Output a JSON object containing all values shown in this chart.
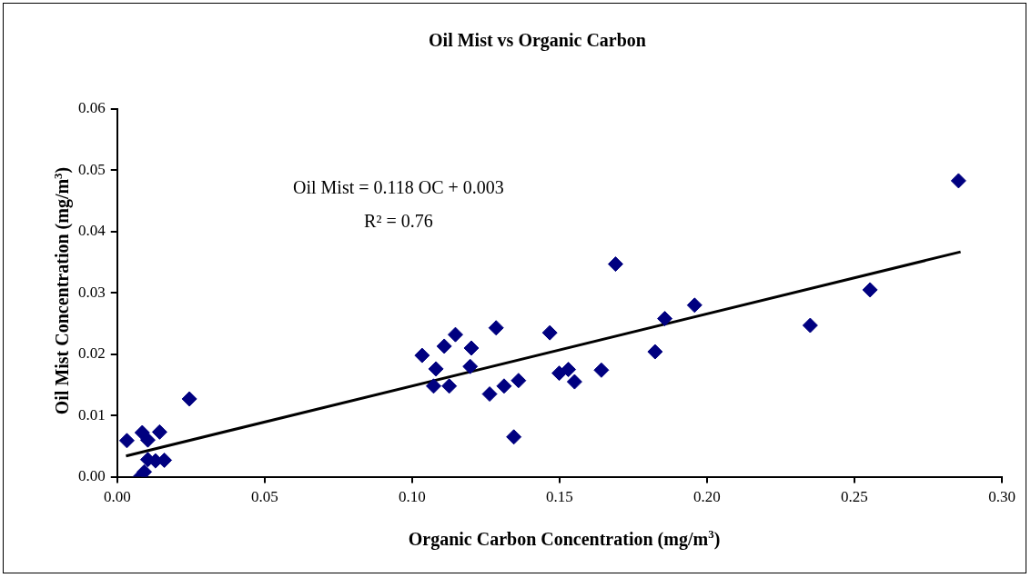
{
  "chart_data": {
    "type": "scatter",
    "title": "Oil Mist vs Organic Carbon",
    "xlabel": "Organic Carbon Concentration (mg/m$^{3}$)",
    "ylabel": "Oil Mist Concentration (mg/m$^{3}$)",
    "annotations": [
      "Oil Mist = 0.118 OC + 0.003",
      "R² = 0.76"
    ],
    "xlim": [
      0,
      0.3
    ],
    "ylim": [
      0,
      0.06
    ],
    "xticks": [
      {
        "value": 0,
        "label": "0.00"
      },
      {
        "value": 0.05,
        "label": "0.05"
      },
      {
        "value": 0.1,
        "label": "0.10"
      },
      {
        "value": 0.15,
        "label": "0.15"
      },
      {
        "value": 0.2,
        "label": "0.20"
      },
      {
        "value": 0.25,
        "label": "0.25"
      },
      {
        "value": 0.3,
        "label": "0.30"
      }
    ],
    "yticks": [
      {
        "value": 0,
        "label": "0.00"
      },
      {
        "value": 0.01,
        "label": "0.01"
      },
      {
        "value": 0.02,
        "label": "0.02"
      },
      {
        "value": 0.03,
        "label": "0.03"
      },
      {
        "value": 0.04,
        "label": "0.04"
      },
      {
        "value": 0.05,
        "label": "0.05"
      },
      {
        "value": 0.06,
        "label": "0.06"
      }
    ],
    "grid": false,
    "legend": false,
    "marker": "diamond",
    "series": [
      {
        "color": "#000080",
        "x": [
          0.0033,
          0.0245,
          0.0085,
          0.0104,
          0.0144,
          0.0104,
          0.013,
          0.016,
          0.0092,
          0.0078,
          0.1034,
          0.1081,
          0.1073,
          0.1109,
          0.1147,
          0.1126,
          0.1201,
          0.1197,
          0.1285,
          0.1263,
          0.1312,
          0.1361,
          0.1345,
          0.1467,
          0.1499,
          0.153,
          0.1551,
          0.1642,
          0.169,
          0.1824,
          0.1857,
          0.1958,
          0.235,
          0.2553,
          0.2853
        ],
        "values": [
          0.0059,
          0.0127,
          0.0072,
          0.006,
          0.0073,
          0.0028,
          0.0026,
          0.0027,
          0.0008,
          0.0,
          0.0198,
          0.0176,
          0.0148,
          0.0213,
          0.0232,
          0.0148,
          0.021,
          0.018,
          0.0243,
          0.0135,
          0.0148,
          0.0157,
          0.0065,
          0.0235,
          0.0169,
          0.0175,
          0.0155,
          0.0174,
          0.0347,
          0.0204,
          0.0258,
          0.028,
          0.0247,
          0.0305,
          0.0483
        ]
      },
      {
        "type": "line",
        "color": "#000000",
        "marker": "none",
        "x": [
          0.003,
          0.286
        ],
        "values": [
          0.0034,
          0.0367
        ]
      }
    ]
  }
}
